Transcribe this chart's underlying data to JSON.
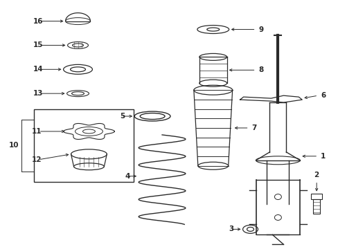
{
  "bg_color": "#ffffff",
  "line_color": "#2a2a2a",
  "figure_size": [
    4.89,
    3.6
  ],
  "dpi": 100
}
